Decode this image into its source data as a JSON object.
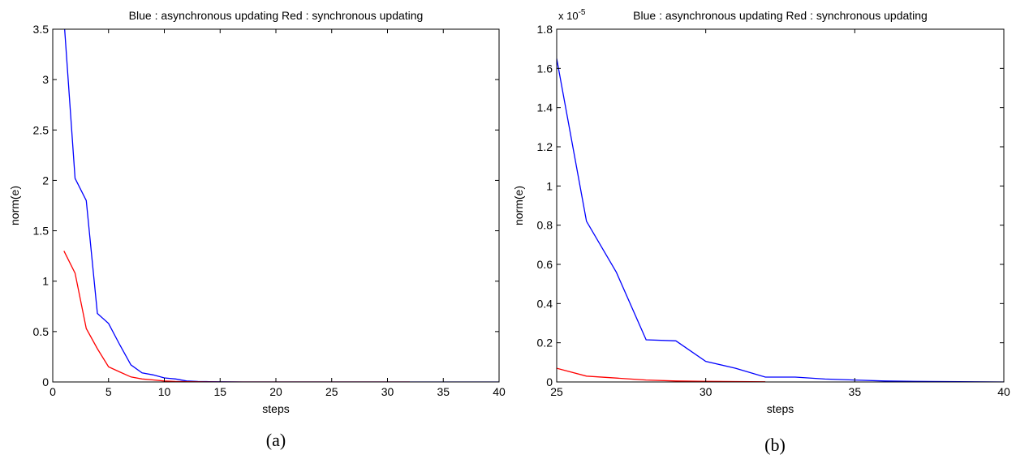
{
  "chart_data": [
    {
      "id": "a",
      "type": "line",
      "caption": "(a)",
      "title": "Blue : asynchronous updating  Red : synchronous updating",
      "xlabel": "steps",
      "ylabel": "norm(e)",
      "xlim": [
        0,
        40
      ],
      "ylim": [
        0,
        3.5
      ],
      "xticks": [
        0,
        5,
        10,
        15,
        20,
        25,
        30,
        35,
        40
      ],
      "yticks": [
        0,
        0.5,
        1,
        1.5,
        2,
        2.5,
        3,
        3.5
      ],
      "ytick_labels": [
        "0",
        "0.5",
        "1",
        "1.5",
        "2",
        "2.5",
        "3",
        "3.5"
      ],
      "exponent_label": "",
      "grid": false,
      "series": [
        {
          "color": "#0000ff",
          "x": [
            1,
            2,
            3,
            4,
            5,
            6,
            7,
            8,
            9,
            10,
            11,
            12,
            13,
            14,
            15,
            16,
            17,
            18,
            19,
            20,
            21,
            22,
            23,
            24,
            25,
            26,
            27,
            28,
            29,
            30,
            31,
            32,
            33,
            34,
            35,
            36,
            37,
            38,
            39,
            40
          ],
          "y": [
            3.6,
            2.02,
            1.8,
            0.68,
            0.58,
            0.37,
            0.17,
            0.09,
            0.07,
            0.04,
            0.03,
            0.01,
            0.005,
            0.003,
            0.002,
            0.001,
            0,
            0,
            0,
            0,
            0,
            0,
            0,
            0,
            0,
            0,
            0,
            0,
            0,
            0,
            0,
            0,
            0,
            0,
            0,
            0,
            0,
            0,
            0,
            0
          ]
        },
        {
          "color": "#ff0000",
          "x": [
            1,
            2,
            3,
            4,
            5,
            6,
            7,
            8,
            9,
            10,
            11,
            12,
            13,
            14,
            15,
            16,
            17,
            18,
            19,
            20,
            21,
            22,
            23,
            24,
            25,
            26,
            27,
            28,
            29,
            30,
            31,
            32
          ],
          "y": [
            1.3,
            1.08,
            0.53,
            0.33,
            0.15,
            0.1,
            0.05,
            0.03,
            0.02,
            0.01,
            0.005,
            0.003,
            0.002,
            0.001,
            0,
            0,
            0,
            0,
            0,
            0,
            0,
            0,
            0,
            0,
            0,
            0,
            0,
            0,
            0,
            0,
            0,
            0
          ]
        }
      ]
    },
    {
      "id": "b",
      "type": "line",
      "caption": "(b)",
      "title": "Blue : asynchronous updating  Red : synchronous updating",
      "xlabel": "steps",
      "ylabel": "norm(e)",
      "xlim": [
        25,
        40
      ],
      "ylim": [
        0,
        1.8
      ],
      "y_scale_factor": "1e-5",
      "xticks": [
        25,
        30,
        35,
        40
      ],
      "yticks": [
        0,
        0.2,
        0.4,
        0.6,
        0.8,
        1,
        1.2,
        1.4,
        1.6,
        1.8
      ],
      "ytick_labels": [
        "0",
        "0.2",
        "0.4",
        "0.6",
        "0.8",
        "1",
        "1.2",
        "1.4",
        "1.6",
        "1.8"
      ],
      "exponent_label": "x 10",
      "exponent_power": "-5",
      "grid": false,
      "series": [
        {
          "color": "#0000ff",
          "x": [
            25,
            26,
            27,
            28,
            29,
            30,
            31,
            32,
            33,
            34,
            35,
            36,
            37,
            38,
            39,
            40
          ],
          "y": [
            1.65,
            0.82,
            0.56,
            0.215,
            0.21,
            0.105,
            0.07,
            0.025,
            0.025,
            0.015,
            0.01,
            0.005,
            0.003,
            0.002,
            0.001,
            0
          ]
        },
        {
          "color": "#ff0000",
          "x": [
            25,
            26,
            27,
            28,
            29,
            30,
            31,
            32
          ],
          "y": [
            0.07,
            0.03,
            0.02,
            0.01,
            0.005,
            0.003,
            0.002,
            0.001
          ]
        }
      ]
    }
  ]
}
